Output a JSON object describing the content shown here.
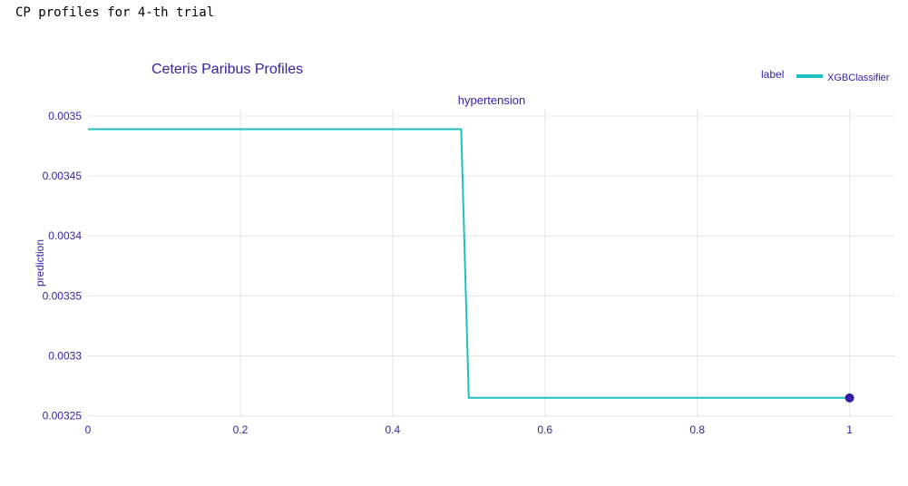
{
  "caption": "CP profiles for 4-th trial",
  "colors": {
    "text": "#371ea3",
    "line": "#1ec0c0",
    "point": "#371ea3",
    "grid": "#e6e6e6"
  },
  "chart_data": {
    "type": "line",
    "title": "Ceteris Paribus Profiles",
    "subplot_title": "hypertension",
    "xlabel": "",
    "ylabel": "prediction",
    "xlim": [
      0,
      1.06
    ],
    "ylim": [
      0.003249,
      0.003506
    ],
    "x_ticks": [
      0,
      0.2,
      0.4,
      0.6,
      0.8,
      1
    ],
    "x_tick_labels": [
      "0",
      "0.2",
      "0.4",
      "0.6",
      "0.8",
      "1"
    ],
    "y_ticks": [
      0.00325,
      0.0033,
      0.00335,
      0.0034,
      0.00345,
      0.0035
    ],
    "y_tick_labels": [
      "0.00325",
      "0.0033",
      "0.00335",
      "0.0034",
      "0.00345",
      "0.0035"
    ],
    "grid": true,
    "legend": {
      "title": "label",
      "position": "top-right",
      "entries": [
        "XGBClassifier"
      ]
    },
    "series": [
      {
        "name": "XGBClassifier",
        "x": [
          0,
          0.49,
          0.5,
          1
        ],
        "y": [
          0.003489,
          0.003489,
          0.003265,
          0.003265
        ]
      }
    ],
    "observation": {
      "x": 1,
      "y": 0.003265
    }
  }
}
